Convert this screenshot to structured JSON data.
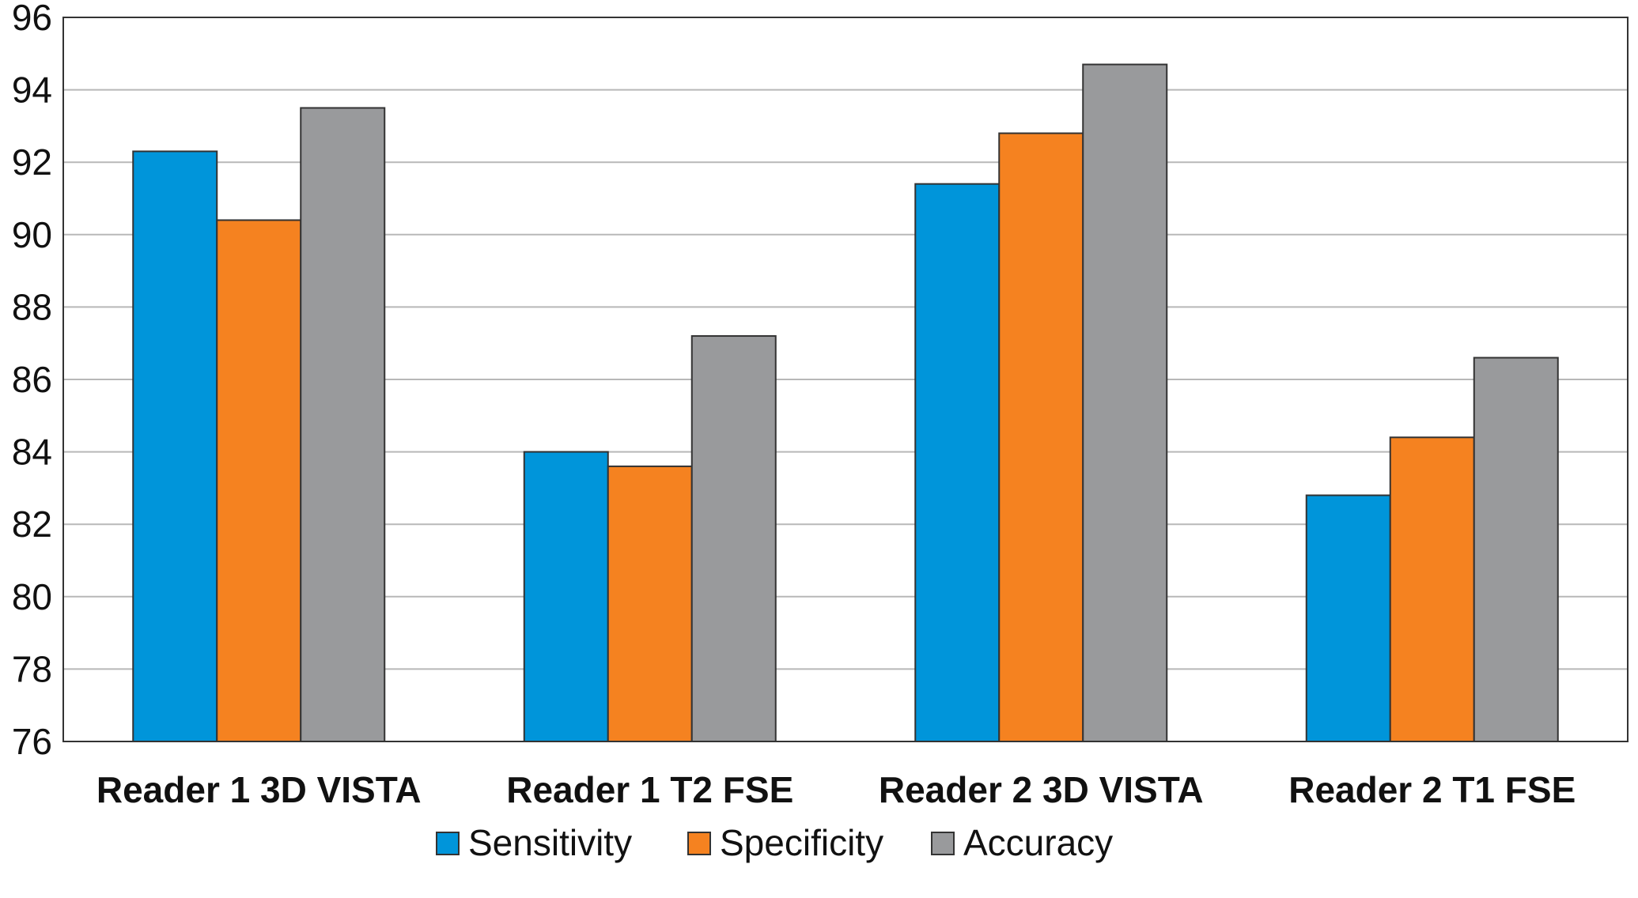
{
  "chart_data": {
    "type": "bar",
    "title": "",
    "xlabel": "",
    "ylabel": "",
    "ylim": [
      76,
      96
    ],
    "yticks": [
      76,
      78,
      80,
      82,
      84,
      86,
      88,
      90,
      92,
      94,
      96
    ],
    "grid": "horizontal",
    "legend_position": "bottom",
    "categories": [
      "Reader 1 3D VISTA",
      "Reader 1 T2 FSE",
      "Reader 2 3D VISTA",
      "Reader 2 T1 FSE"
    ],
    "series": [
      {
        "name": "Sensitivity",
        "color": "#0095da",
        "values": [
          92.3,
          84.0,
          91.4,
          82.8
        ]
      },
      {
        "name": "Specificity",
        "color": "#f58220",
        "values": [
          90.4,
          83.6,
          92.8,
          84.4
        ]
      },
      {
        "name": "Accuracy",
        "color": "#999a9c",
        "values": [
          93.5,
          87.2,
          94.7,
          86.6
        ]
      }
    ]
  }
}
